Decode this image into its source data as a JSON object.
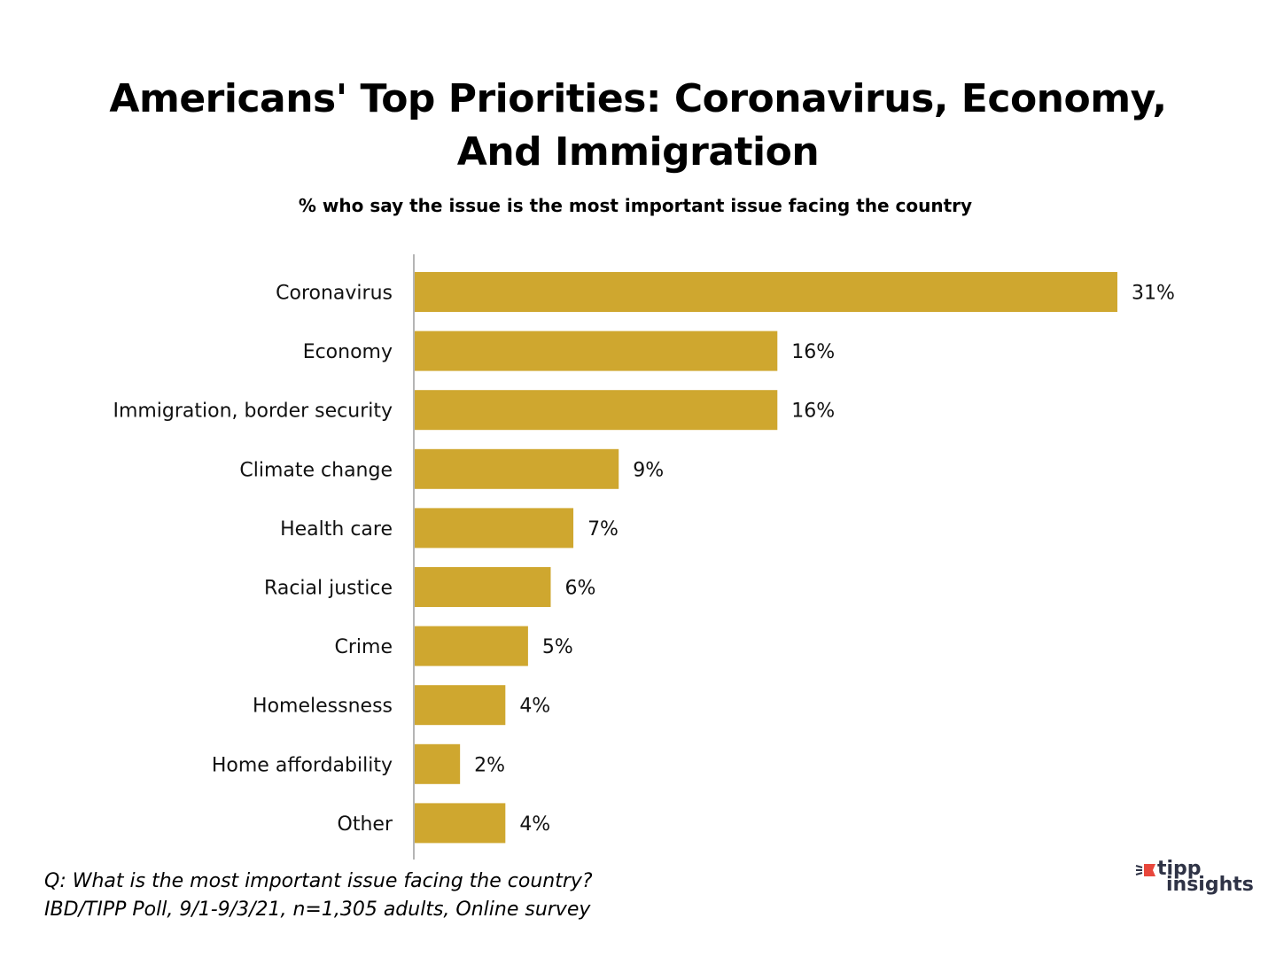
{
  "chart_data": {
    "type": "bar",
    "orientation": "horizontal",
    "title": "Americans' Top Priorities:  Coronavirus, Economy, And Immigration",
    "title_lines": [
      "Americans' Top Priorities:  Coronavirus, Economy,",
      "And Immigration"
    ],
    "subtitle": "% who say the issue is the most important issue facing the country",
    "categories": [
      "Coronavirus",
      "Economy",
      "Immigration, border security",
      "Climate change",
      "Health care",
      "Racial justice",
      "Crime",
      "Homelessness",
      "Home affordability",
      "Other"
    ],
    "values": [
      31,
      16,
      16,
      9,
      7,
      6,
      5,
      4,
      2,
      4
    ],
    "data_labels": [
      "31%",
      "16%",
      "16%",
      "9%",
      "7%",
      "6%",
      "5%",
      "4%",
      "2%",
      "4%"
    ],
    "unit": "%",
    "xlim": [
      0,
      31
    ],
    "grid": false,
    "legend": "none",
    "bar_color": "#CFA72F"
  },
  "footnotes": {
    "question": "Q:  What is the most important issue facing the country?",
    "source": "IBD/TIPP Poll, 9/1-9/3/21, n=1,305 adults, Online survey"
  },
  "logo": {
    "line1": "tipp",
    "line2": "insights",
    "accent_color": "#E8473C",
    "text_color": "#2F3346"
  }
}
